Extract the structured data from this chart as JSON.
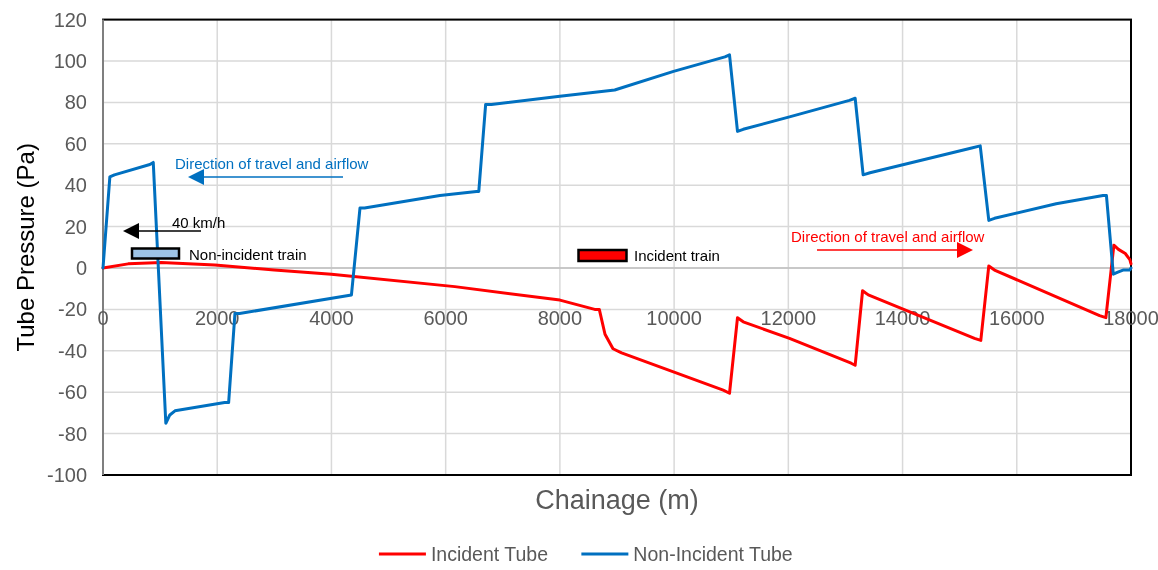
{
  "chart_data": {
    "type": "line",
    "xlabel": "Chainage (m)",
    "ylabel": "Tube Pressure (Pa)",
    "xlim": [
      0,
      18000
    ],
    "xticks": [
      0,
      2000,
      4000,
      6000,
      8000,
      10000,
      12000,
      14000,
      16000,
      18000
    ],
    "ylim": [
      -100,
      120
    ],
    "yticks": [
      -100,
      -80,
      -60,
      -40,
      -20,
      0,
      20,
      40,
      60,
      80,
      100,
      120
    ],
    "grid": true,
    "legend": "bottom",
    "line_style": "solid",
    "series": [
      {
        "name": "Incident Tube",
        "color": "#ff0000",
        "x": [
          0,
          440,
          1020,
          1960,
          3000,
          4000,
          6160,
          8000,
          8610,
          8690,
          8790,
          8930,
          9080,
          10860,
          10970,
          11110,
          11210,
          12020,
          13100,
          13170,
          13300,
          13400,
          15260,
          15370,
          15510,
          15610,
          17450,
          17560,
          17700,
          17780,
          17900,
          17980,
          18000
        ],
        "values": [
          0,
          2,
          2.6,
          1.4,
          -1,
          -3,
          -9,
          -15.5,
          -20,
          -20,
          -32,
          -39,
          -41,
          -59,
          -60.5,
          -24,
          -26,
          -34,
          -46,
          -47,
          -11,
          -13,
          -34,
          -35,
          1,
          -1,
          -23,
          -24,
          11,
          9,
          7,
          4,
          2
        ]
      },
      {
        "name": "Non-Incident Tube",
        "color": "#0070c0",
        "x": [
          0,
          120,
          200,
          820,
          880,
          1100,
          1170,
          1260,
          2130,
          2200,
          2310,
          2390,
          4350,
          4500,
          4580,
          5900,
          6540,
          6580,
          6700,
          6800,
          8000,
          8960,
          9990,
          10890,
          10970,
          11110,
          11210,
          12020,
          13070,
          13170,
          13310,
          13430,
          15210,
          15360,
          15510,
          15610,
          16690,
          17510,
          17570,
          17690,
          17770,
          17860,
          17980,
          18000
        ],
        "values": [
          0,
          44,
          45,
          50,
          51,
          -75,
          -71,
          -69,
          -65,
          -65,
          -22,
          -22,
          -13,
          29,
          29,
          35,
          37,
          37,
          79,
          79,
          83,
          86,
          95,
          102,
          103,
          66,
          67,
          73,
          81,
          82,
          45,
          46,
          58,
          59,
          23,
          24,
          31,
          35,
          35,
          -3,
          -2,
          -1,
          -1,
          0
        ]
      }
    ],
    "annotations": [
      "Direction of travel and airflow",
      "40 km/h",
      "Non-incident train",
      "Incident train",
      "Direction of travel and airflow"
    ]
  }
}
